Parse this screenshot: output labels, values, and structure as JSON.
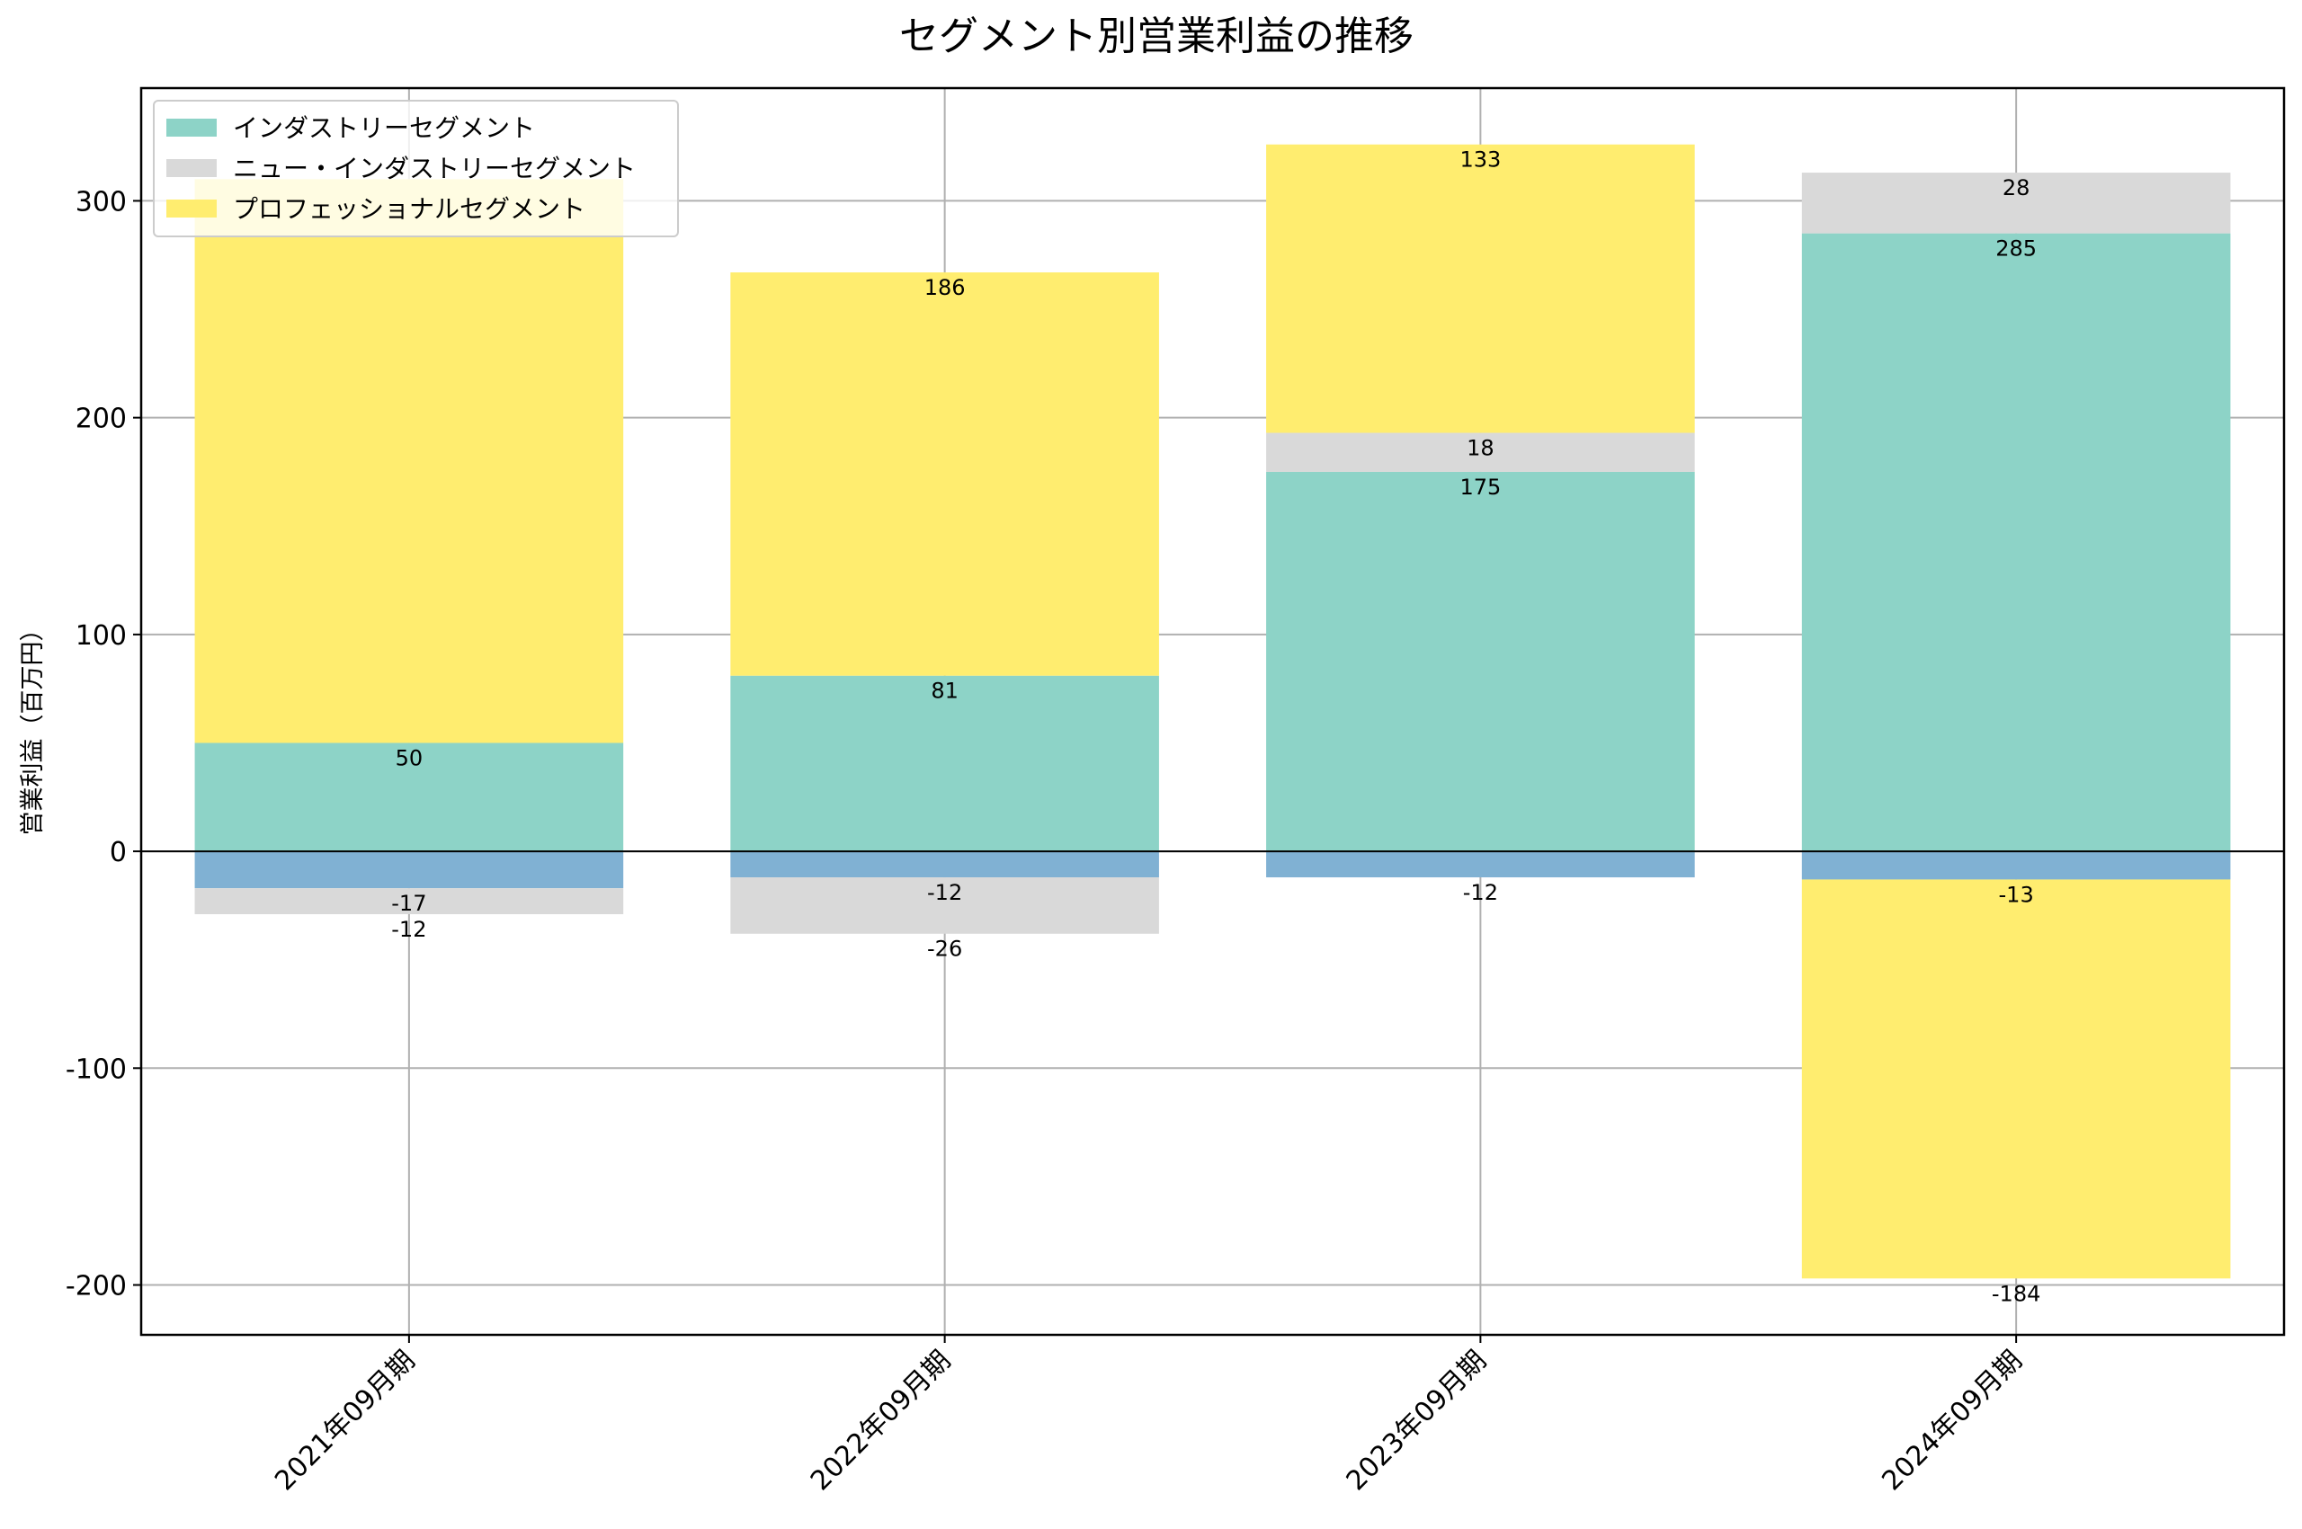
{
  "chart_data": {
    "type": "bar",
    "stacked": true,
    "title": "セグメント別営業利益の推移",
    "xlabel": "",
    "ylabel": "営業利益（百万円）",
    "categories": [
      "2021年09月期",
      "2022年09月期",
      "2023年09月期",
      "2024年09月期"
    ],
    "ylim": [
      -223,
      352
    ],
    "yticks": [
      -200,
      -100,
      0,
      100,
      200,
      300
    ],
    "ytick_labels": [
      "-200",
      "-100",
      "0",
      "100",
      "200",
      "300"
    ],
    "grid": true,
    "legend_position": "top-left",
    "series": [
      {
        "name": "インダストリーセグメント",
        "color": "#8dd3c7",
        "in_legend": true,
        "values": [
          50,
          81,
          175,
          285
        ],
        "value_labels": [
          "50",
          "81",
          "175",
          "285"
        ]
      },
      {
        "name": "",
        "color": "#80b1d3",
        "in_legend": false,
        "values": [
          -17,
          -12,
          -12,
          -13
        ],
        "value_labels": [
          "-17",
          "-12",
          "-12",
          "-13"
        ]
      },
      {
        "name": "ニュー・インダストリーセグメント",
        "color": "#d9d9d9",
        "in_legend": true,
        "values": [
          -12,
          -26,
          18,
          28
        ],
        "value_labels": [
          "-12",
          "-26",
          "18",
          "28"
        ]
      },
      {
        "name": "プロフェッショナルセグメント",
        "color": "#ffed6f",
        "in_legend": true,
        "values": [
          260,
          186,
          133,
          -184
        ],
        "value_labels": [
          "",
          "186",
          "133",
          "-184"
        ]
      }
    ]
  }
}
